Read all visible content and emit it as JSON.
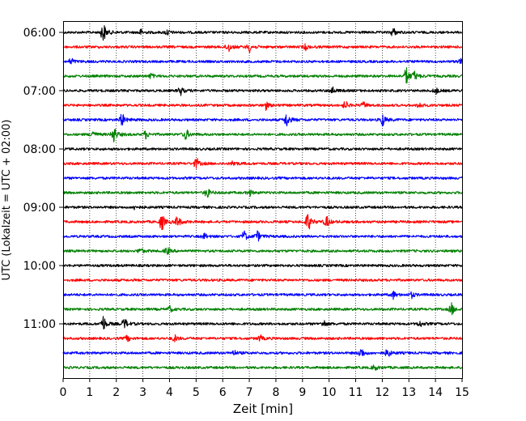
{
  "chart_data": {
    "type": "line",
    "title": "",
    "xlabel": "Zeit  [min]",
    "ylabel": "UTC (Lokalzeit = UTC + 02:00)",
    "xlim": [
      0,
      15
    ],
    "x_ticks": [
      0,
      1,
      2,
      3,
      4,
      5,
      6,
      7,
      8,
      9,
      10,
      11,
      12,
      13,
      14,
      15
    ],
    "x_tick_labels": [
      "0",
      "1",
      "2",
      "3",
      "4",
      "5",
      "6",
      "7",
      "8",
      "9",
      "10",
      "11",
      "12",
      "13",
      "14",
      "15"
    ],
    "y_tick_labels": [
      "06:00",
      "07:00",
      "08:00",
      "09:00",
      "10:00",
      "11:00"
    ],
    "y_tick_rows": [
      0,
      4,
      8,
      12,
      16,
      20
    ],
    "grid": "vertical dotted",
    "colors": [
      "#000000",
      "#ff0000",
      "#0000ff",
      "#008000"
    ],
    "traces": [
      {
        "start": "06:00",
        "color": "#000000",
        "events": [
          [
            1.5,
            1.0
          ],
          [
            2.9,
            0.3
          ],
          [
            3.9,
            0.3
          ],
          [
            12.4,
            0.45
          ]
        ]
      },
      {
        "start": "06:15",
        "color": "#ff0000",
        "events": [
          [
            6.2,
            0.55
          ],
          [
            7.0,
            0.5
          ],
          [
            9.1,
            0.3
          ]
        ]
      },
      {
        "start": "06:30",
        "color": "#0000ff",
        "events": [
          [
            0.3,
            0.35
          ],
          [
            14.9,
            0.3
          ]
        ]
      },
      {
        "start": "06:45",
        "color": "#008000",
        "events": [
          [
            3.3,
            0.25
          ],
          [
            12.9,
            0.9
          ],
          [
            13.2,
            0.4
          ]
        ]
      },
      {
        "start": "07:00",
        "color": "#000000",
        "events": [
          [
            4.4,
            0.45
          ],
          [
            10.1,
            0.4
          ],
          [
            14.0,
            0.3
          ]
        ]
      },
      {
        "start": "07:15",
        "color": "#ff0000",
        "events": [
          [
            7.6,
            0.45
          ],
          [
            10.6,
            0.4
          ],
          [
            11.3,
            0.3
          ],
          [
            13.4,
            0.3
          ]
        ]
      },
      {
        "start": "07:30",
        "color": "#0000ff",
        "events": [
          [
            2.2,
            0.7
          ],
          [
            8.4,
            0.8
          ],
          [
            12.0,
            0.65
          ]
        ]
      },
      {
        "start": "07:45",
        "color": "#008000",
        "events": [
          [
            1.1,
            0.45
          ],
          [
            1.9,
            0.85
          ],
          [
            3.1,
            0.4
          ],
          [
            4.6,
            0.6
          ]
        ]
      },
      {
        "start": "08:00",
        "color": "#000000",
        "events": []
      },
      {
        "start": "08:15",
        "color": "#ff0000",
        "events": [
          [
            5.0,
            0.55
          ],
          [
            6.4,
            0.3
          ]
        ]
      },
      {
        "start": "08:30",
        "color": "#0000ff",
        "events": []
      },
      {
        "start": "08:45",
        "color": "#008000",
        "events": [
          [
            5.4,
            0.5
          ],
          [
            7.0,
            0.3
          ]
        ]
      },
      {
        "start": "09:00",
        "color": "#000000",
        "events": [
          [
            2.7,
            0.25
          ]
        ]
      },
      {
        "start": "09:15",
        "color": "#ff0000",
        "events": [
          [
            3.7,
            0.9
          ],
          [
            4.3,
            0.6
          ],
          [
            9.2,
            1.0
          ],
          [
            9.9,
            0.55
          ]
        ]
      },
      {
        "start": "09:30",
        "color": "#0000ff",
        "events": [
          [
            5.3,
            0.3
          ],
          [
            6.8,
            0.55
          ],
          [
            7.3,
            0.5
          ]
        ]
      },
      {
        "start": "09:45",
        "color": "#008000",
        "events": [
          [
            2.9,
            0.3
          ],
          [
            3.9,
            0.35
          ]
        ]
      },
      {
        "start": "10:00",
        "color": "#000000",
        "events": []
      },
      {
        "start": "10:15",
        "color": "#ff0000",
        "events": []
      },
      {
        "start": "10:30",
        "color": "#0000ff",
        "events": [
          [
            12.4,
            0.4
          ],
          [
            13.1,
            0.3
          ]
        ]
      },
      {
        "start": "10:45",
        "color": "#008000",
        "events": [
          [
            4.0,
            0.3
          ],
          [
            14.6,
            0.6
          ]
        ]
      },
      {
        "start": "11:00",
        "color": "#000000",
        "events": [
          [
            1.5,
            0.8
          ],
          [
            2.3,
            0.55
          ],
          [
            9.8,
            0.35
          ],
          [
            13.4,
            0.3
          ]
        ]
      },
      {
        "start": "11:15",
        "color": "#ff0000",
        "events": [
          [
            2.4,
            0.3
          ],
          [
            4.2,
            0.35
          ],
          [
            7.4,
            0.3
          ]
        ]
      },
      {
        "start": "11:30",
        "color": "#0000ff",
        "events": [
          [
            6.4,
            0.3
          ],
          [
            11.2,
            0.55
          ],
          [
            12.2,
            0.45
          ]
        ]
      },
      {
        "start": "11:45",
        "color": "#008000",
        "events": [
          [
            11.7,
            0.3
          ]
        ]
      }
    ]
  }
}
